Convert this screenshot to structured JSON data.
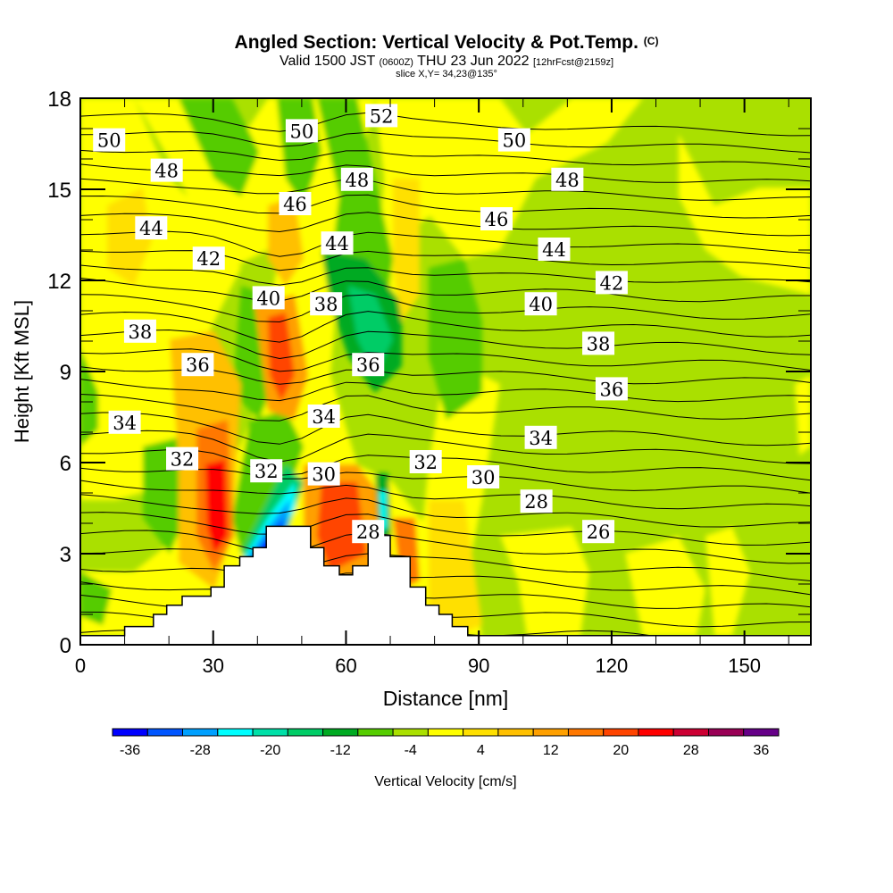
{
  "header": {
    "title": "Angled Section: Vertical Velocity & Pot.Temp.",
    "copyright": "(C)",
    "valid_prefix": "Valid 1500 JST",
    "valid_utc": "(0600Z)",
    "valid_date": "THU 23 Jun 2022",
    "forecast": "[12hrFcst@2159z]",
    "slice": "slice X,Y= 34,23@135°"
  },
  "chart_data": {
    "type": "heatmap",
    "title": "Angled Section: Vertical Velocity & Pot.Temp.",
    "xlabel": "Distance [nm]",
    "ylabel": "Height [Kft MSL]",
    "xlim": [
      0,
      165
    ],
    "ylim": [
      0,
      18
    ],
    "x_ticks": [
      "0",
      "30",
      "60",
      "90",
      "120",
      "150"
    ],
    "x_tick_values": [
      0,
      30,
      60,
      90,
      120,
      150
    ],
    "y_ticks": [
      "0",
      "3",
      "6",
      "9",
      "12",
      "15",
      "18"
    ],
    "y_tick_values": [
      0,
      3,
      6,
      9,
      12,
      15,
      18
    ],
    "colorbar": {
      "label": "Vertical Velocity [cm/s]",
      "tick_labels": [
        "-36",
        "-28",
        "-20",
        "-12",
        "-4",
        "4",
        "12",
        "20",
        "28",
        "36"
      ],
      "levels": [
        -40,
        -36,
        -32,
        -28,
        -24,
        -20,
        -16,
        -12,
        -8,
        -4,
        0,
        4,
        8,
        12,
        16,
        20,
        24,
        28,
        32,
        36,
        40
      ],
      "colors": [
        "#0000ff",
        "#0055ff",
        "#00a0ff",
        "#00ffff",
        "#00e0a8",
        "#00cc66",
        "#00aa22",
        "#55cc00",
        "#aae000",
        "#ffff00",
        "#ffe000",
        "#ffc000",
        "#ffa000",
        "#ff7800",
        "#ff4400",
        "#ff0000",
        "#cc0033",
        "#990055",
        "#660088"
      ]
    },
    "contour_labels": [
      {
        "text": "52",
        "x": 68,
        "y": 17.4
      },
      {
        "text": "50",
        "x": 6.5,
        "y": 16.6
      },
      {
        "text": "50",
        "x": 50,
        "y": 16.9
      },
      {
        "text": "50",
        "x": 98,
        "y": 16.6
      },
      {
        "text": "48",
        "x": 19.5,
        "y": 15.6
      },
      {
        "text": "48",
        "x": 62.5,
        "y": 15.3
      },
      {
        "text": "48",
        "x": 110,
        "y": 15.3
      },
      {
        "text": "46",
        "x": 48.5,
        "y": 14.5
      },
      {
        "text": "46",
        "x": 94,
        "y": 14.0
      },
      {
        "text": "44",
        "x": 16,
        "y": 13.7
      },
      {
        "text": "44",
        "x": 58,
        "y": 13.2
      },
      {
        "text": "44",
        "x": 107,
        "y": 13.0
      },
      {
        "text": "42",
        "x": 29,
        "y": 12.7
      },
      {
        "text": "42",
        "x": 120,
        "y": 11.9
      },
      {
        "text": "40",
        "x": 42.5,
        "y": 11.4
      },
      {
        "text": "40",
        "x": 104,
        "y": 11.2
      },
      {
        "text": "38",
        "x": 13.5,
        "y": 10.3
      },
      {
        "text": "38",
        "x": 55.5,
        "y": 11.2
      },
      {
        "text": "38",
        "x": 117,
        "y": 9.9
      },
      {
        "text": "36",
        "x": 26.5,
        "y": 9.2
      },
      {
        "text": "36",
        "x": 65,
        "y": 9.2
      },
      {
        "text": "36",
        "x": 120,
        "y": 8.4
      },
      {
        "text": "34",
        "x": 10,
        "y": 7.3
      },
      {
        "text": "34",
        "x": 55,
        "y": 7.5
      },
      {
        "text": "34",
        "x": 104,
        "y": 6.8
      },
      {
        "text": "32",
        "x": 23,
        "y": 6.1
      },
      {
        "text": "32",
        "x": 42,
        "y": 5.7
      },
      {
        "text": "32",
        "x": 78,
        "y": 6.0
      },
      {
        "text": "30",
        "x": 55,
        "y": 5.6
      },
      {
        "text": "30",
        "x": 91,
        "y": 5.5
      },
      {
        "text": "28",
        "x": 65,
        "y": 3.7
      },
      {
        "text": "28",
        "x": 103,
        "y": 4.7
      },
      {
        "text": "26",
        "x": 117,
        "y": 3.7
      }
    ],
    "terrain_profile": {
      "x_nm": [
        0,
        10,
        10,
        16.5,
        16.5,
        19.5,
        19.5,
        23,
        23,
        29.5,
        29.5,
        32.5,
        32.5,
        36,
        36,
        39,
        39,
        42,
        42,
        52,
        52,
        55,
        55,
        58.5,
        58.5,
        61.5,
        61.5,
        65,
        65,
        70,
        70,
        74.5,
        74.5,
        78,
        78,
        81,
        81,
        84,
        84,
        87.5,
        87.5,
        165
      ],
      "height_kft": [
        0.3,
        0.3,
        0.6,
        0.6,
        1.0,
        1.0,
        1.3,
        1.3,
        1.6,
        1.6,
        1.9,
        1.9,
        2.6,
        2.6,
        2.9,
        2.9,
        3.2,
        3.2,
        3.9,
        3.9,
        3.2,
        3.2,
        2.6,
        2.6,
        2.3,
        2.3,
        2.6,
        2.6,
        3.6,
        3.6,
        2.9,
        2.9,
        1.9,
        1.9,
        1.3,
        1.3,
        1.0,
        1.0,
        0.6,
        0.6,
        0.3,
        0.3
      ]
    }
  }
}
